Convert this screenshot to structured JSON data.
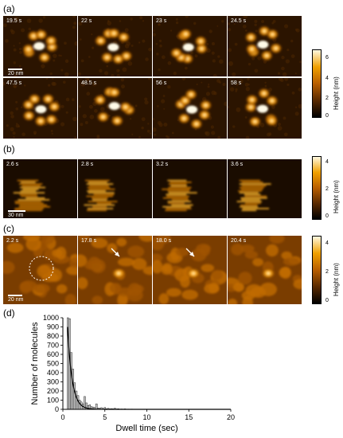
{
  "panels": {
    "a": {
      "label": "(a)",
      "row1_times": [
        "19.5 s",
        "22 s",
        "23 s",
        "24.5 s"
      ],
      "row2_times": [
        "47.5 s",
        "48.5 s",
        "56 s",
        "58 s"
      ],
      "scale_label": "20 nm",
      "colorbar": {
        "label": "Height (nm)",
        "ticks": [
          "6",
          "4",
          "2",
          "0"
        ]
      }
    },
    "b": {
      "label": "(b)",
      "times": [
        "2.6 s",
        "2.8 s",
        "3.2 s",
        "3.6 s"
      ],
      "scale_label": "30 nm",
      "colorbar": {
        "label": "Height (nm)",
        "ticks": [
          "4",
          "2",
          "0"
        ]
      }
    },
    "c": {
      "label": "(c)",
      "times": [
        "2.2 s",
        "17.8 s",
        "18.0 s",
        "20.4 s"
      ],
      "scale_label": "20 nm",
      "colorbar": {
        "label": "Height (nm)",
        "ticks": [
          "4",
          "2",
          "0"
        ]
      }
    },
    "d": {
      "label": "(d)"
    }
  },
  "chart_data": {
    "type": "bar",
    "xlabel": "Dwell time (sec)",
    "ylabel": "Number of molecules",
    "xlim": [
      0,
      20
    ],
    "ylim": [
      0,
      1000
    ],
    "xticks": [
      0,
      5,
      10,
      15,
      20
    ],
    "yticks": [
      0,
      100,
      200,
      300,
      400,
      500,
      600,
      700,
      800,
      900,
      1000
    ],
    "bin_width": 0.2,
    "bins_x": [
      0.6,
      0.8,
      1.0,
      1.2,
      1.4,
      1.6,
      1.8,
      2.0,
      2.2,
      2.4,
      2.6,
      2.8,
      3.0,
      3.2,
      3.4,
      3.6,
      3.8,
      4.0,
      4.2,
      4.4,
      4.6,
      4.8,
      5.0,
      5.2,
      5.4,
      5.6,
      5.8,
      6.0,
      6.2,
      6.4,
      6.6,
      6.8,
      7.0,
      7.2,
      7.4,
      7.6,
      7.8,
      8.0,
      8.2,
      8.4,
      8.6,
      8.8,
      9.0,
      9.2,
      9.4,
      9.6,
      9.8,
      10.0
    ],
    "values": [
      1000,
      990,
      620,
      440,
      290,
      200,
      150,
      100,
      80,
      60,
      140,
      70,
      40,
      50,
      30,
      25,
      20,
      60,
      15,
      10,
      18,
      8,
      20,
      6,
      10,
      5,
      8,
      5,
      12,
      4,
      6,
      3,
      4,
      3,
      5,
      2,
      3,
      2,
      3,
      1,
      2,
      1,
      2,
      1,
      1,
      1,
      1,
      1
    ],
    "fit_curve": "exponential decay"
  }
}
